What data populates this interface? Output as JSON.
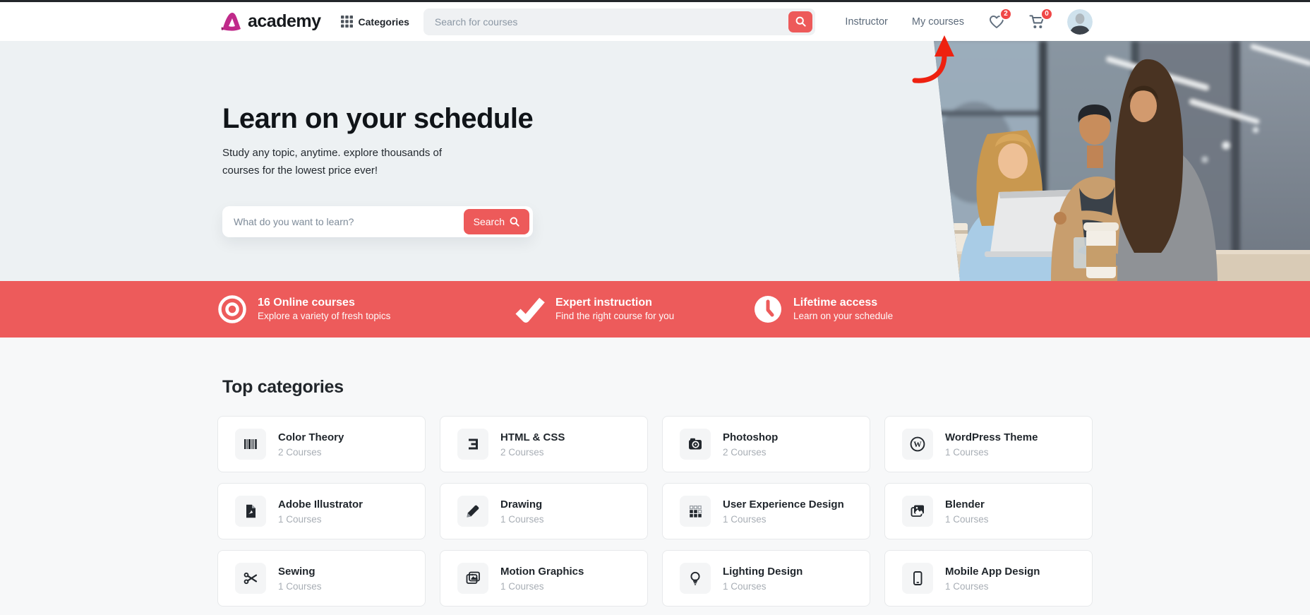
{
  "header": {
    "brand": "academy",
    "categories_label": "Categories",
    "search_placeholder": "Search for courses",
    "nav": [
      {
        "label": "Instructor"
      },
      {
        "label": "My courses"
      }
    ],
    "wishlist_count": "2",
    "cart_count": "0"
  },
  "hero": {
    "title": "Learn on your schedule",
    "subtitle": "Study any topic, anytime. explore thousands of courses for the lowest price ever!",
    "search_placeholder": "What do you want to learn?",
    "search_button_label": "Search"
  },
  "features": [
    {
      "icon": "bullseye-icon",
      "title": "16 Online courses",
      "subtitle": "Explore a variety of fresh topics"
    },
    {
      "icon": "check-icon",
      "title": "Expert instruction",
      "subtitle": "Find the right course for you"
    },
    {
      "icon": "clock-icon",
      "title": "Lifetime access",
      "subtitle": "Learn on your schedule"
    }
  ],
  "categories": {
    "title": "Top categories",
    "items": [
      {
        "icon": "barcode-icon",
        "name": "Color Theory",
        "count": "2 Courses"
      },
      {
        "icon": "css3-icon",
        "name": "HTML & CSS",
        "count": "2 Courses"
      },
      {
        "icon": "camera-icon",
        "name": "Photoshop",
        "count": "2 Courses"
      },
      {
        "icon": "wordpress-icon",
        "name": "WordPress Theme",
        "count": "1 Courses"
      },
      {
        "icon": "file-icon",
        "name": "Adobe Illustrator",
        "count": "1 Courses"
      },
      {
        "icon": "pencil-icon",
        "name": "Drawing",
        "count": "1 Courses"
      },
      {
        "icon": "grid-icon",
        "name": "User Experience Design",
        "count": "1 Courses"
      },
      {
        "icon": "images-icon",
        "name": "Blender",
        "count": "1 Courses"
      },
      {
        "icon": "scissors-icon",
        "name": "Sewing",
        "count": "1 Courses"
      },
      {
        "icon": "motion-icon",
        "name": "Motion Graphics",
        "count": "1 Courses"
      },
      {
        "icon": "bulb-icon",
        "name": "Lighting Design",
        "count": "1 Courses"
      },
      {
        "icon": "mobile-icon",
        "name": "Mobile App Design",
        "count": "1 Courses"
      }
    ]
  },
  "colors": {
    "accent_red": "#ed5b5b",
    "badge_red": "#f04747",
    "annotation_arrow_red": "#ee2110",
    "brand_magenta": "#c02a8a",
    "hero_bg": "#edf1f3"
  }
}
